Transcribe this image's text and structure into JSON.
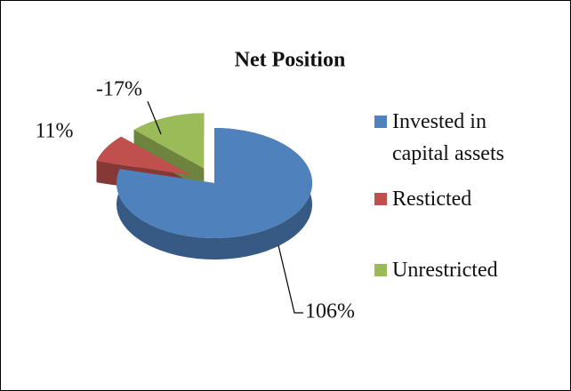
{
  "chart_data": {
    "type": "pie3d",
    "title": "Net Position",
    "categories": [
      "Invested in capital assets",
      "Resticted",
      "Unrestricted"
    ],
    "values": [
      106,
      11,
      -17
    ],
    "value_labels": [
      "106%",
      "11%",
      "-17%"
    ],
    "colors": [
      "#4f81bd",
      "#c0504d",
      "#9bbb59"
    ],
    "legend": "right"
  }
}
